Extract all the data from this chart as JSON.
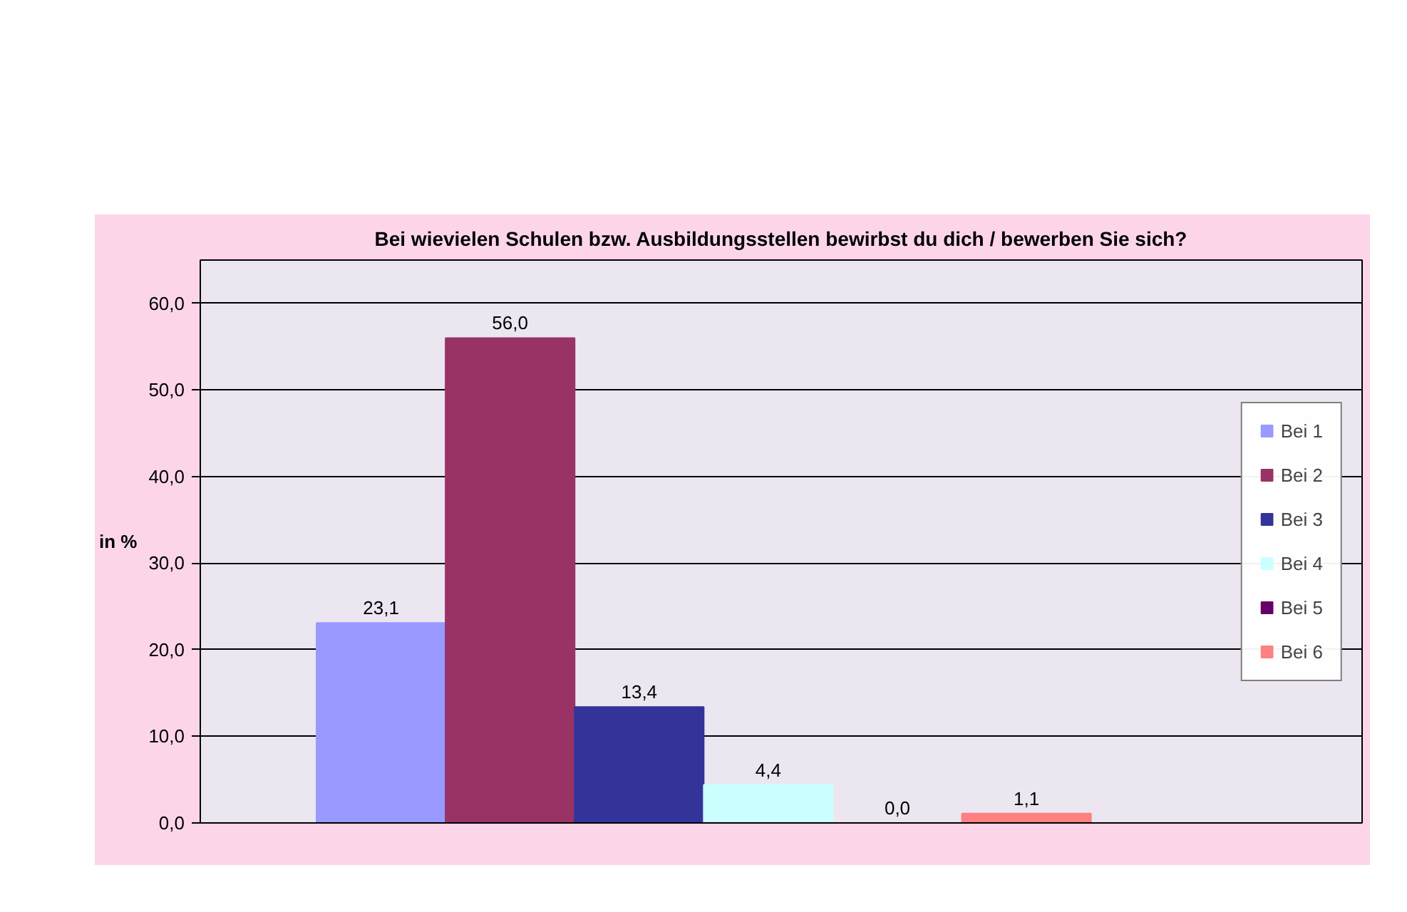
{
  "chart_data": {
    "type": "bar",
    "title": "Bei wievielen Schulen bzw. Ausbildungsstellen bewirbst du dich / bewerben Sie sich?",
    "ylabel": "in %",
    "categories": [
      null
    ],
    "series": [
      {
        "name": "Bei 1",
        "color": "#9999ff",
        "values": [
          23.1
        ],
        "value_labels": [
          "23,1"
        ]
      },
      {
        "name": "Bei 2",
        "color": "#993366",
        "values": [
          56.0
        ],
        "value_labels": [
          "56,0"
        ]
      },
      {
        "name": "Bei 3",
        "color": "#333399",
        "values": [
          13.4
        ],
        "value_labels": [
          "13,4"
        ]
      },
      {
        "name": "Bei 4",
        "color": "#ccffff",
        "values": [
          4.4
        ],
        "value_labels": [
          "4,4"
        ]
      },
      {
        "name": "Bei 5",
        "color": "#660066",
        "values": [
          0.0
        ],
        "value_labels": [
          "0,0"
        ]
      },
      {
        "name": "Bei 6",
        "color": "#ff8080",
        "values": [
          1.1
        ],
        "value_labels": [
          "1,1"
        ]
      }
    ],
    "ylim": [
      0,
      65
    ],
    "yticks": [
      {
        "value": 0,
        "label": "0,0"
      },
      {
        "value": 10,
        "label": "10,0"
      },
      {
        "value": 20,
        "label": "20,0"
      },
      {
        "value": 30,
        "label": "30,0"
      },
      {
        "value": 40,
        "label": "40,0"
      },
      {
        "value": 50,
        "label": "50,0"
      },
      {
        "value": 60,
        "label": "60,0"
      }
    ],
    "grid": "y",
    "legend": "right"
  }
}
